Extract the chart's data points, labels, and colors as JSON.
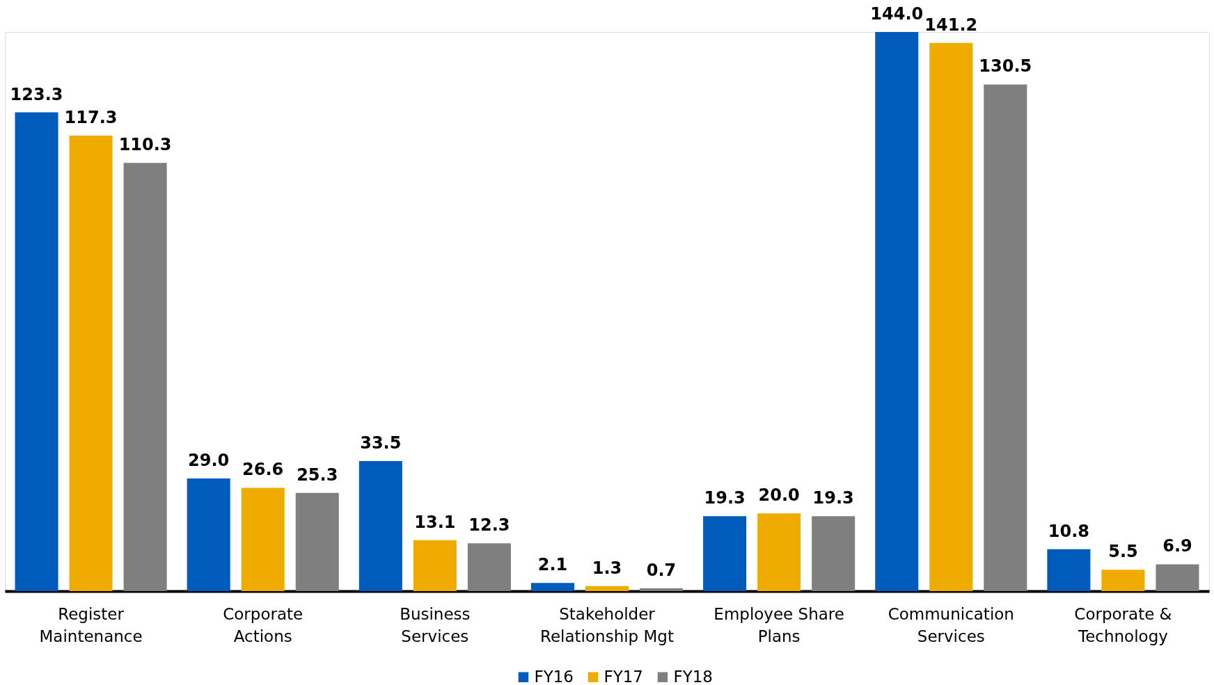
{
  "chart_data": {
    "type": "bar",
    "categories": [
      "Register Maintenance",
      "Corporate Actions",
      "Business Services",
      "Stakeholder Relationship Mgt",
      "Employee Share Plans",
      "Communication Services",
      "Corporate & Technology"
    ],
    "series": [
      {
        "name": "FY16",
        "color": "#005bbb",
        "values": [
          123.3,
          29.0,
          33.5,
          2.1,
          19.3,
          144.0,
          10.8
        ],
        "value_labels": [
          "123.3",
          "29.0",
          "33.5",
          "2.1",
          "19.3",
          "144.0",
          "10.8"
        ]
      },
      {
        "name": "FY17",
        "color": "#f0ab00",
        "values": [
          117.3,
          26.6,
          13.1,
          1.3,
          20.0,
          141.2,
          5.5
        ],
        "value_labels": [
          "117.3",
          "26.6",
          "13.1",
          "1.3",
          "20.0",
          "141.2",
          "5.5"
        ]
      },
      {
        "name": "FY18",
        "color": "#7f7f7f",
        "values": [
          110.3,
          25.3,
          12.3,
          0.7,
          19.3,
          130.5,
          6.9
        ],
        "value_labels": [
          "110.3",
          "25.3",
          "12.3",
          "0.7",
          "19.3",
          "130.5",
          "6.9"
        ]
      }
    ],
    "legend": "bottom",
    "tick_labels": "x"
  }
}
